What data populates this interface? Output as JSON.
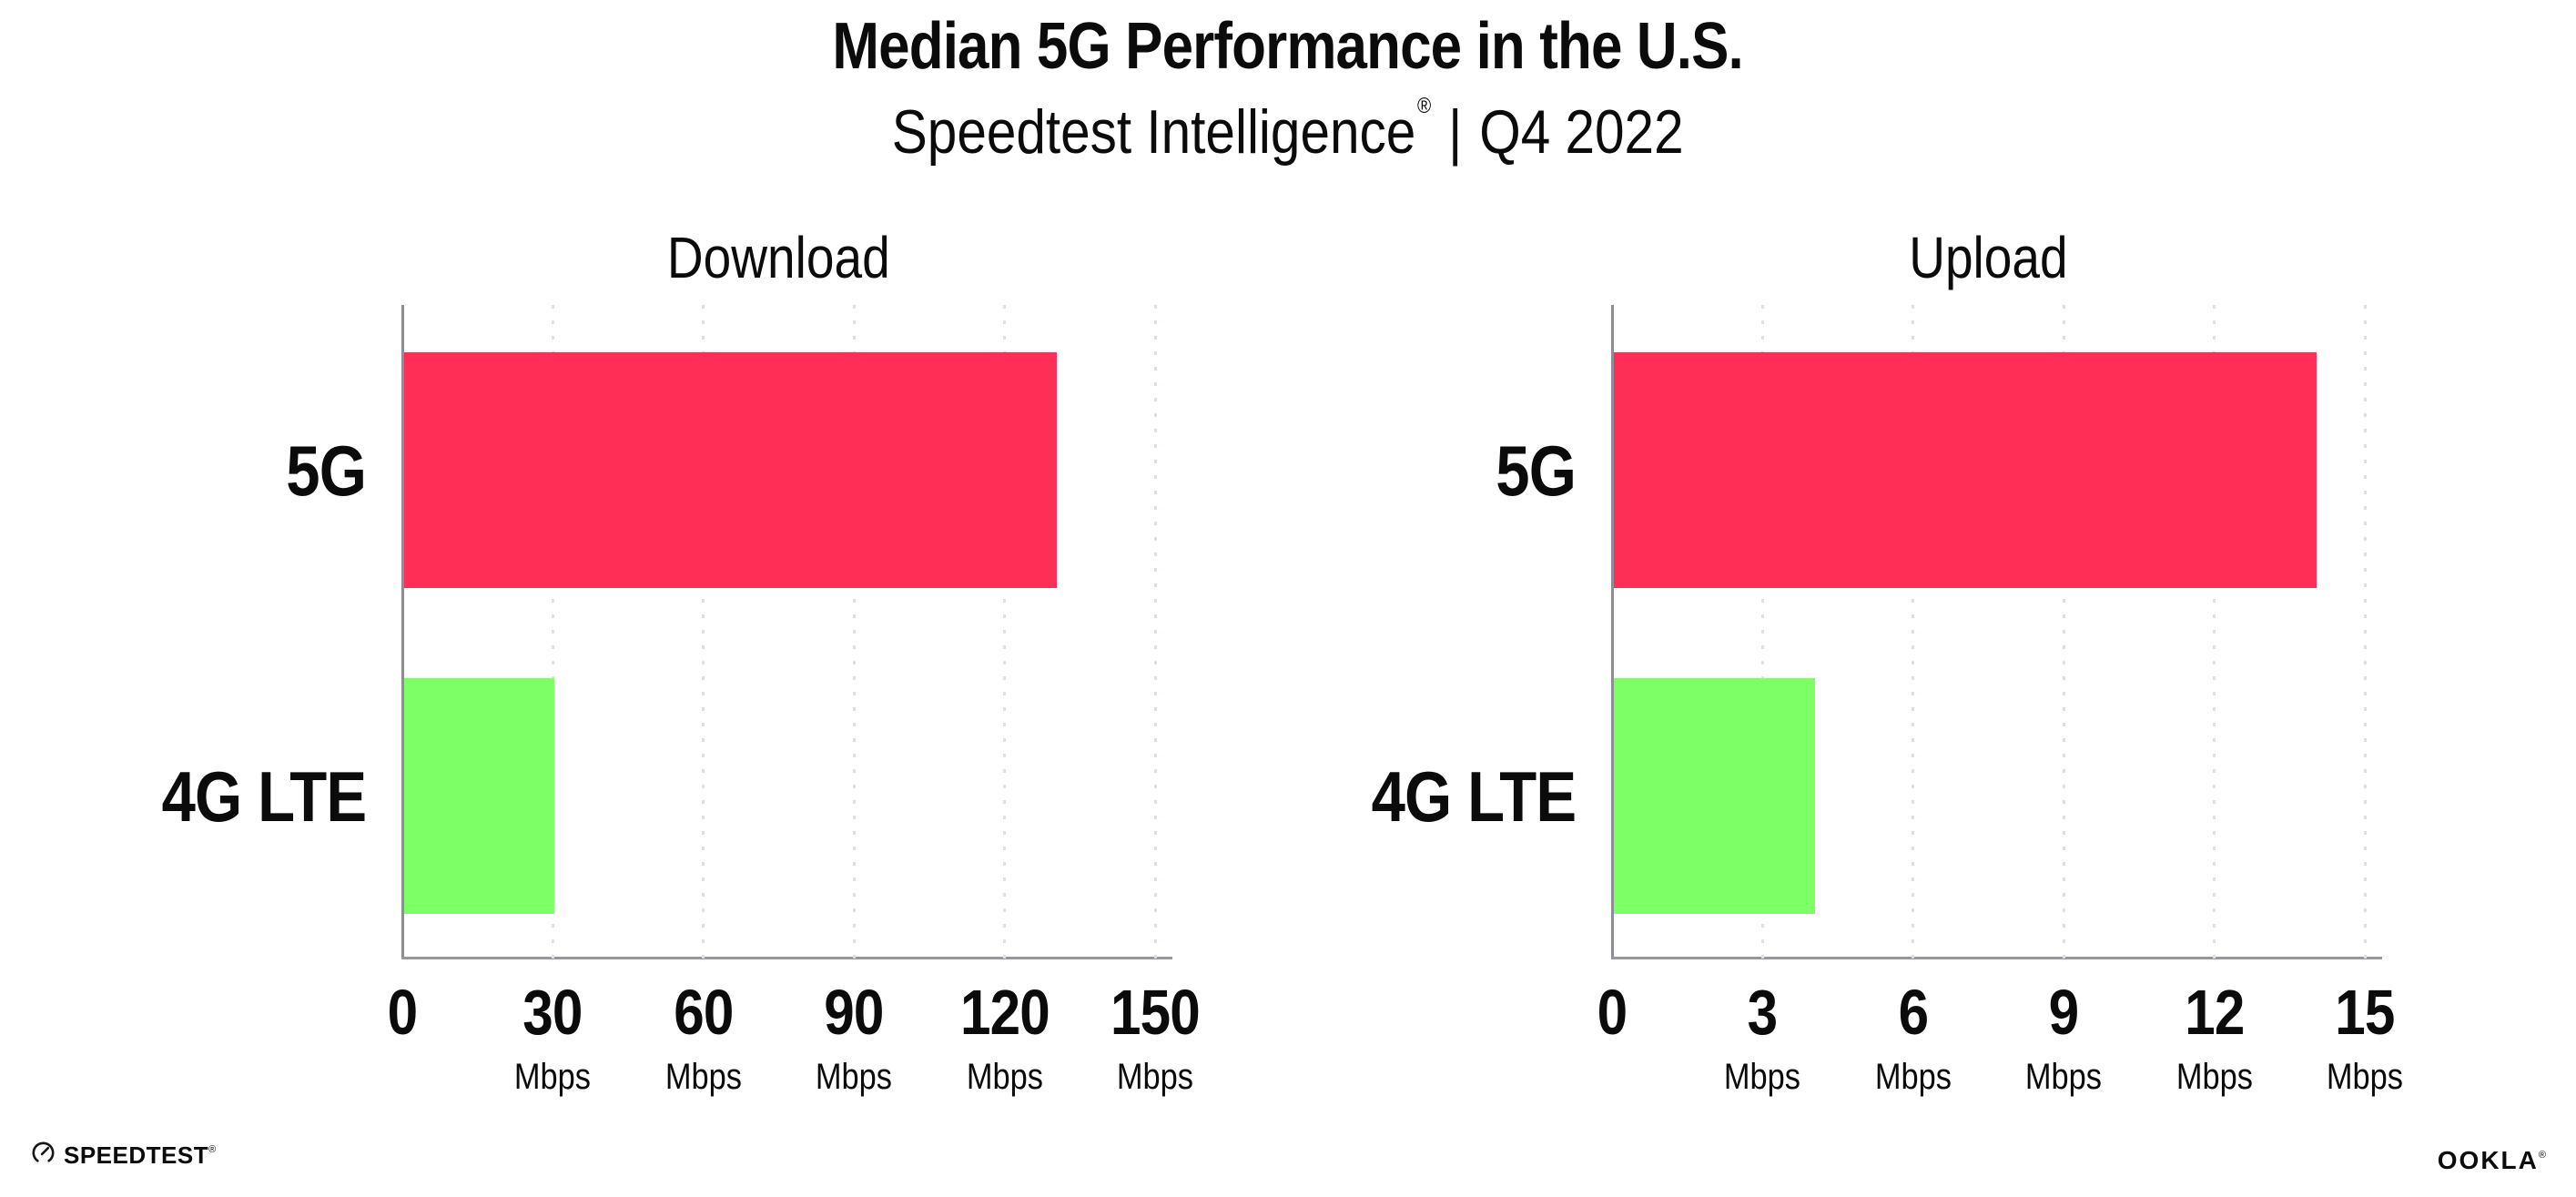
{
  "header": {
    "title": "Median 5G Performance in the U.S.",
    "subtitle_brand": "Speedtest Intelligence",
    "subtitle_reg": "®",
    "subtitle_sep": "|",
    "subtitle_period": "Q4 2022"
  },
  "chart_data": [
    {
      "type": "bar",
      "orientation": "horizontal",
      "title": "Download",
      "categories": [
        "5G",
        "4G LTE"
      ],
      "values": [
        130,
        30
      ],
      "unit": "Mbps",
      "xlim": [
        0,
        150
      ],
      "xticks": [
        0,
        30,
        60,
        90,
        120,
        150
      ],
      "bar_colors": [
        "#FF2E56",
        "#7DFF66"
      ],
      "grid": "dotted-vertical-on",
      "legend": "none"
    },
    {
      "type": "bar",
      "orientation": "horizontal",
      "title": "Upload",
      "categories": [
        "5G",
        "4G LTE"
      ],
      "values": [
        14,
        4
      ],
      "unit": "Mbps",
      "xlim": [
        0,
        15
      ],
      "xticks": [
        0,
        3,
        6,
        9,
        12,
        15
      ],
      "bar_colors": [
        "#FF2E56",
        "#7DFF66"
      ],
      "grid": "dotted-vertical-on",
      "legend": "none"
    }
  ],
  "colors": {
    "bar_5g": "#FF2E56",
    "bar_4g_lte": "#7DFF66",
    "axis": "#97979F",
    "gridline": "#DEDEE8",
    "text": "#0B0B0B"
  },
  "footer": {
    "speedtest_label": "SPEEDTEST",
    "speedtest_mark": "®",
    "speedtest_icon": "gauge-icon",
    "ookla_label": "OOKLA",
    "ookla_mark": "®"
  }
}
